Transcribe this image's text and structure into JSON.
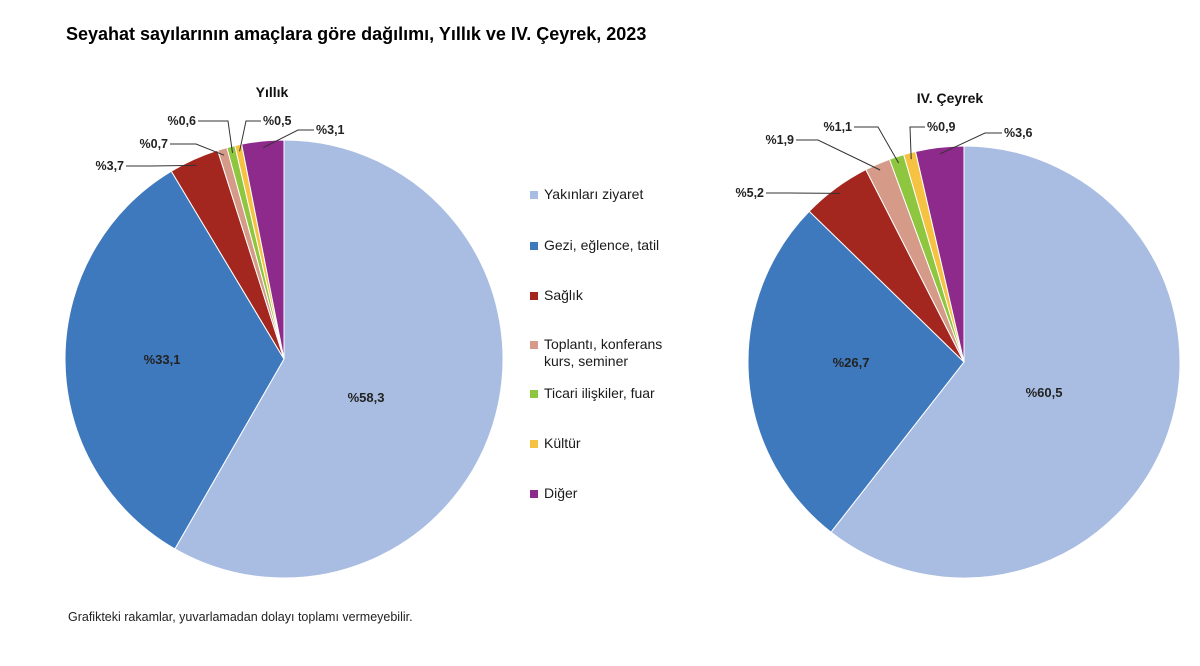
{
  "title": "Seyahat sayılarının amaçlara göre dağılımı, Yıllık ve IV. Çeyrek, 2023",
  "footnote": "Grafikteki rakamlar, yuvarlamadan dolayı toplamı vermeyebilir.",
  "legend": {
    "items": [
      {
        "label": "Yakınları ziyaret",
        "color": "#a8bde1"
      },
      {
        "label": "Gezi, eğlence, tatil",
        "color": "#3f79bd"
      },
      {
        "label": "Sağlık",
        "color": "#a3271e"
      },
      {
        "label": "Toplantı, konferans\nkurs, seminer",
        "color": "#d59a88"
      },
      {
        "label": "Ticari ilişkiler, fuar",
        "color": "#8ec63f"
      },
      {
        "label": "Kültür",
        "color": "#f5c242"
      },
      {
        "label": "Diğer",
        "color": "#8e2a8c"
      }
    ]
  },
  "chart_data": [
    {
      "type": "pie",
      "title": "Yıllık",
      "categories": [
        "Yakınları ziyaret",
        "Gezi, eğlence, tatil",
        "Sağlık",
        "Toplantı, konferans kurs, seminer",
        "Ticari ilişkiler, fuar",
        "Kültür",
        "Diğer"
      ],
      "values": [
        58.3,
        33.1,
        3.7,
        0.7,
        0.6,
        0.5,
        3.1
      ],
      "labels": [
        "%58,3",
        "%33,1",
        "%3,7",
        "%0,7",
        "%0,6",
        "%0,5",
        "%3,1"
      ],
      "colors": [
        "#a8bde1",
        "#3f79bd",
        "#a3271e",
        "#d59a88",
        "#8ec63f",
        "#f5c242",
        "#8e2a8c"
      ]
    },
    {
      "type": "pie",
      "title": "IV. Çeyrek",
      "categories": [
        "Yakınları ziyaret",
        "Gezi, eğlence, tatil",
        "Sağlık",
        "Toplantı, konferans kurs, seminer",
        "Ticari ilişkiler, fuar",
        "Kültür",
        "Diğer"
      ],
      "values": [
        60.5,
        26.7,
        5.2,
        1.9,
        1.1,
        0.9,
        3.6
      ],
      "labels": [
        "%60,5",
        "%26,7",
        "%5,2",
        "%1,9",
        "%1,1",
        "%0,9",
        "%3,6"
      ],
      "colors": [
        "#a8bde1",
        "#3f79bd",
        "#a3271e",
        "#d59a88",
        "#8ec63f",
        "#f5c242",
        "#8e2a8c"
      ]
    }
  ]
}
